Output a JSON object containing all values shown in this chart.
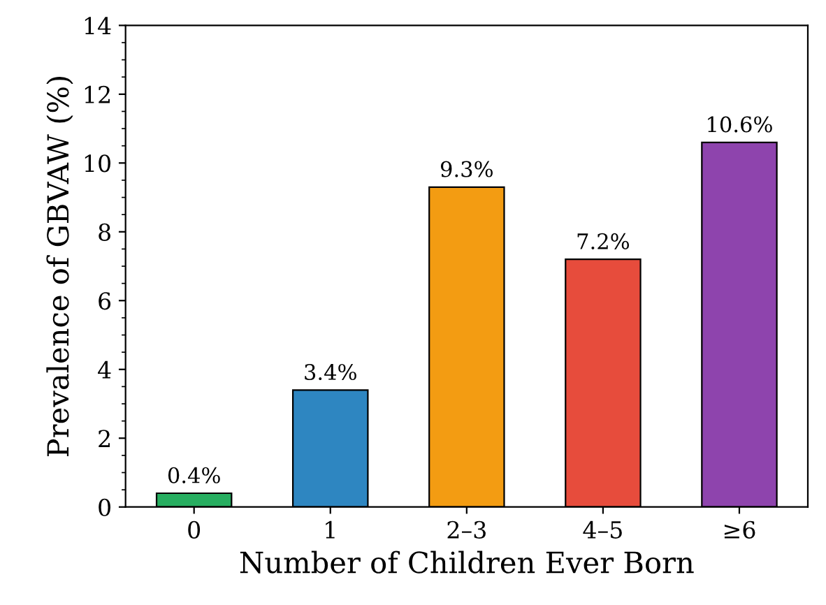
{
  "chart_data": {
    "type": "bar",
    "xlabel": "Number of Children Ever Born",
    "ylabel": "Prevalence of GBVAW (%)",
    "categories": [
      "0",
      "1",
      "2–3",
      "4–5",
      "≥6"
    ],
    "values": [
      0.4,
      3.4,
      9.3,
      7.2,
      10.6
    ],
    "colors": [
      "#27ae60",
      "#2e86c1",
      "#f39c12",
      "#e74c3c",
      "#8e44ad"
    ],
    "value_labels": [
      "0.4%",
      "3.4%",
      "9.3%",
      "7.2%",
      "10.6%"
    ],
    "ylim": [
      0,
      14
    ],
    "yticks": [
      0,
      2,
      4,
      6,
      8,
      10,
      12,
      14
    ],
    "grid": false,
    "legend": false
  }
}
